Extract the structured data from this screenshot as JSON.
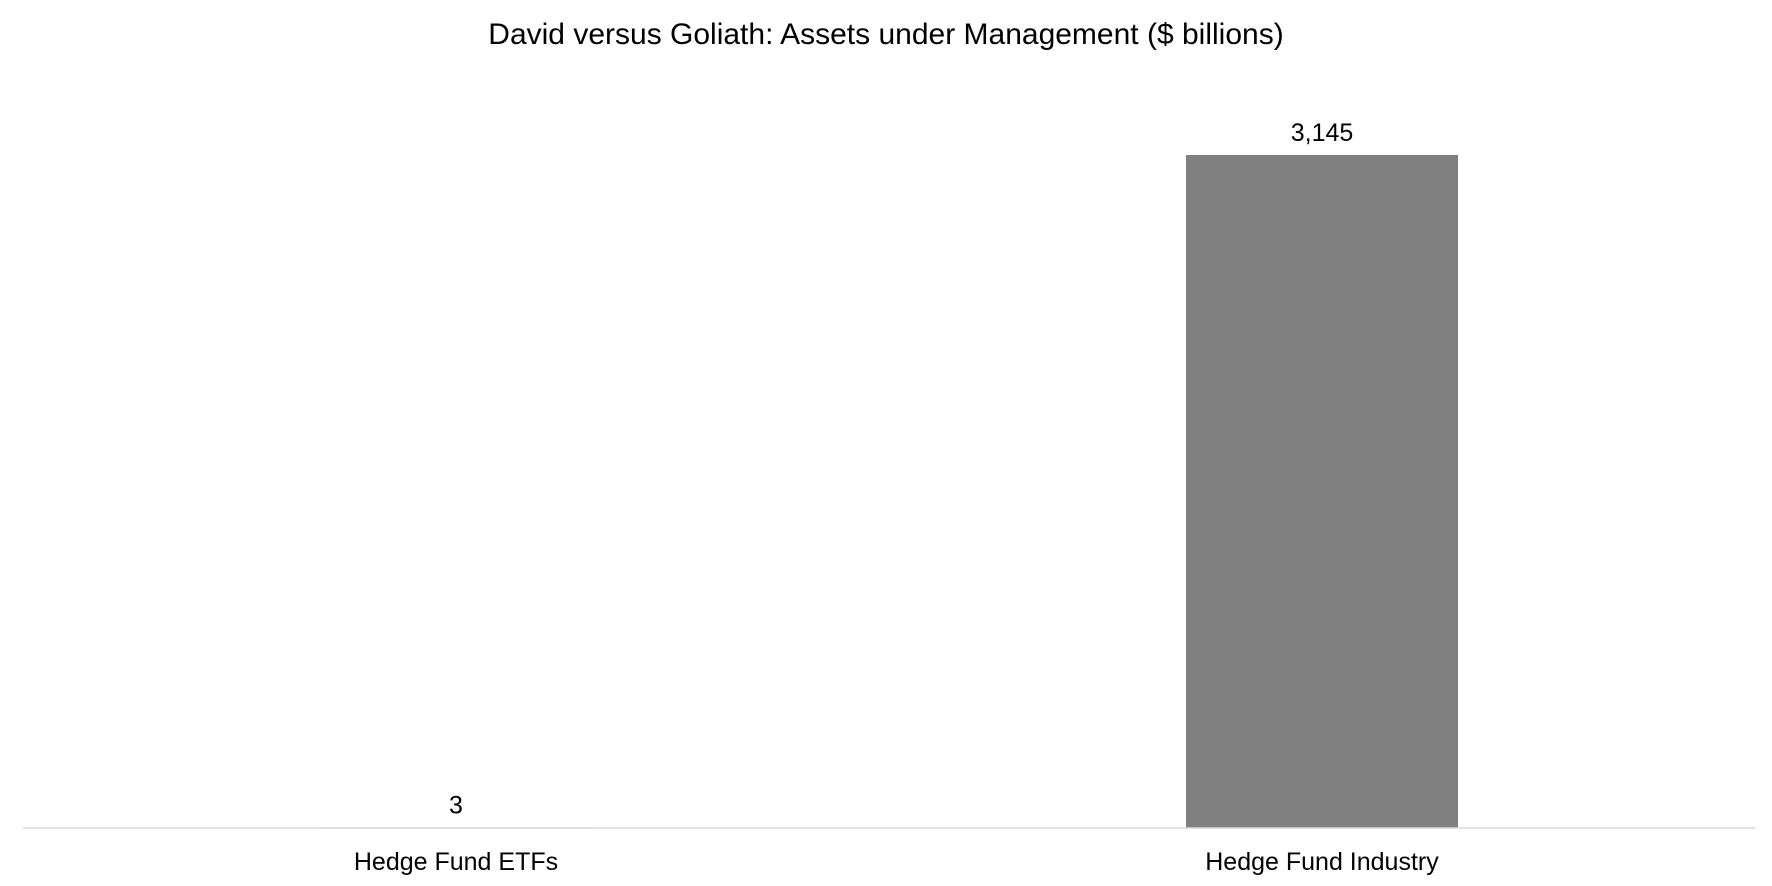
{
  "chart_data": {
    "type": "bar",
    "title": "David versus Goliath: Assets under Management ($ billions)",
    "categories": [
      "Hedge Fund ETFs",
      "Hedge Fund Industry"
    ],
    "values": [
      3,
      3145
    ],
    "value_labels": [
      "3",
      "3,145"
    ],
    "xlabel": "",
    "ylabel": "",
    "ylim": [
      0,
      3145
    ],
    "grid": false,
    "legend": "none",
    "bar_color": "#808080",
    "axis_color": "#d9d9d9",
    "text_color": "#000000"
  }
}
